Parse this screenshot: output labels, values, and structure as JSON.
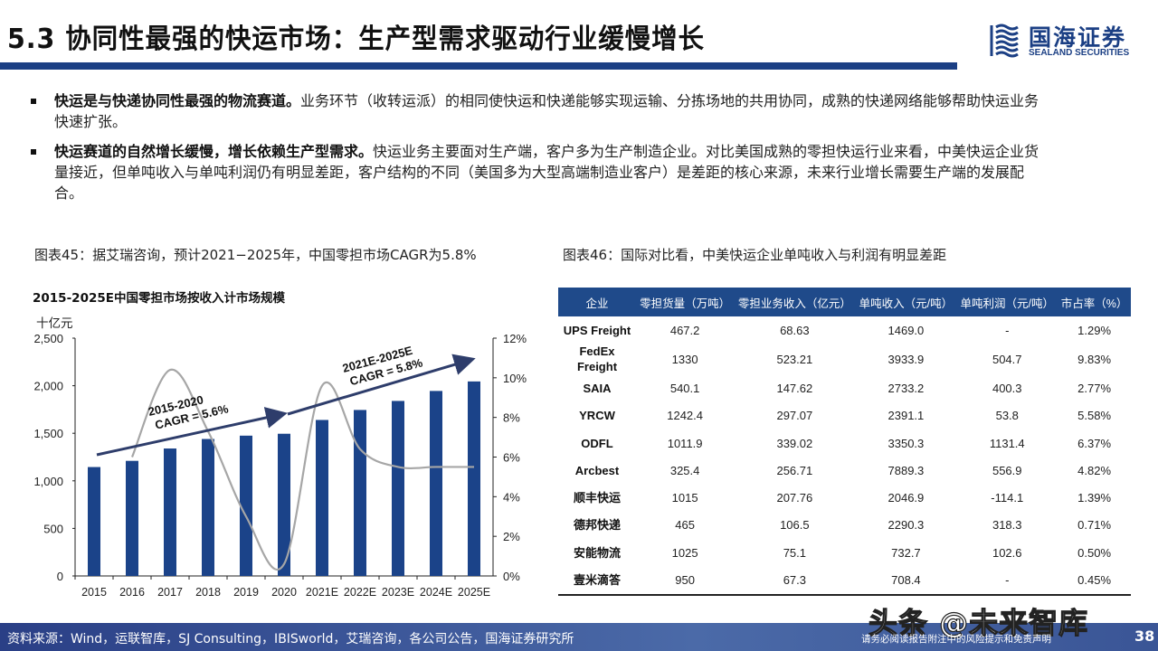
{
  "header": {
    "title": "5.3 协同性最强的快运市场：生产型需求驱动行业缓慢增长",
    "logo_cn": "国海证券",
    "logo_en": "SEALAND SECURITIES",
    "accent_color": "#1b3f84"
  },
  "bullets": [
    {
      "bold": "快运是与快递协同性最强的物流赛道。",
      "text": "业务环节（收转运派）的相同使快运和快递能够实现运输、分拣场地的共用协同，成熟的快递网络能够帮助快运业务快速扩张。"
    },
    {
      "bold": "快运赛道的自然增长缓慢，增长依赖生产型需求。",
      "text": "快运业务主要面对生产端，客户多为生产制造企业。对比美国成熟的零担快运行业来看，中美快运企业货量接近，但单吨收入与单吨利润仍有明显差距，客户结构的不同（美国多为大型高端制造业客户）是差距的核心来源，未来行业增长需要生产端的发展配合。"
    }
  ],
  "figure45": {
    "caption": "图表45：据艾瑞咨询，预计2021−2025年，中国零担市场CAGR为5.8%",
    "chart_title": "2015-2025E中国零担市场按收入计市场规模",
    "unit": "十亿元",
    "left_ticks": [
      "2,500",
      "2,000",
      "1,500",
      "1,000",
      "500",
      "0"
    ],
    "right_ticks": [
      "12%",
      "10%",
      "8%",
      "6%",
      "4%",
      "2%",
      "0%"
    ],
    "annotation1_line1": "2015-2020",
    "annotation1_line2": "CAGR = 5.6%",
    "annotation2_line1": "2021E-2025E",
    "annotation2_line2": "CAGR = 5.8%"
  },
  "chart_data": {
    "type": "bar",
    "title": "2015-2025E中国零担市场按收入计市场规模",
    "xlabel": "",
    "ylabel": "十亿元",
    "ylim": [
      0,
      2500
    ],
    "y2lim": [
      0,
      12
    ],
    "categories": [
      "2015",
      "2016",
      "2017",
      "2018",
      "2019",
      "2020",
      "2021E",
      "2022E",
      "2023E",
      "2024E",
      "2025E"
    ],
    "series": [
      {
        "name": "市场规模（十亿元）",
        "type": "bar",
        "axis": "left",
        "color": "#1b4389",
        "values": [
          1145,
          1210,
          1340,
          1440,
          1475,
          1495,
          1640,
          1745,
          1840,
          1945,
          2045
        ]
      },
      {
        "name": "增速",
        "type": "line",
        "axis": "right",
        "color": "#a6a6a6",
        "values": [
          null,
          6.0,
          10.4,
          7.3,
          3.0,
          0.6,
          9.6,
          6.4,
          5.5,
          5.5,
          5.5
        ]
      }
    ],
    "annotations": [
      "2015-2020 CAGR = 5.6%",
      "2021E-2025E CAGR = 5.8%"
    ],
    "grid": false,
    "legend": "none"
  },
  "figure46": {
    "caption": "图表46：国际对比看，中美快运企业单吨收入与利润有明显差距",
    "columns": [
      "企业",
      "零担货量（万吨）",
      "零担业务收入（亿元）",
      "单吨收入（元/吨）",
      "单吨利润（元/吨）",
      "市占率（%）"
    ],
    "rows": [
      [
        "UPS Freight",
        "467.2",
        "68.63",
        "1469.0",
        "-",
        "1.29%"
      ],
      [
        "FedEx Freight",
        "1330",
        "523.21",
        "3933.9",
        "504.7",
        "9.83%"
      ],
      [
        "SAIA",
        "540.1",
        "147.62",
        "2733.2",
        "400.3",
        "2.77%"
      ],
      [
        "YRCW",
        "1242.4",
        "297.07",
        "2391.1",
        "53.8",
        "5.58%"
      ],
      [
        "ODFL",
        "1011.9",
        "339.02",
        "3350.3",
        "1131.4",
        "6.37%"
      ],
      [
        "Arcbest",
        "325.4",
        "256.71",
        "7889.3",
        "556.9",
        "4.82%"
      ],
      [
        "顺丰快运",
        "1015",
        "207.76",
        "2046.9",
        "-114.1",
        "1.39%"
      ],
      [
        "德邦快递",
        "465",
        "106.5",
        "2290.3",
        "318.3",
        "0.71%"
      ],
      [
        "安能物流",
        "1025",
        "75.1",
        "732.7",
        "102.6",
        "0.50%"
      ],
      [
        "壹米滴答",
        "950",
        "67.3",
        "708.4",
        "-",
        "0.45%"
      ]
    ]
  },
  "footer": {
    "source": "资料来源：Wind，运联智库，SJ Consulting，IBISworld，艾瑞咨询，各公司公告，国海证券研究所",
    "disclaimer": "请务必阅读报告附注中的风险提示和免责声明",
    "page": "38",
    "watermark": "头条 @未来智库"
  }
}
